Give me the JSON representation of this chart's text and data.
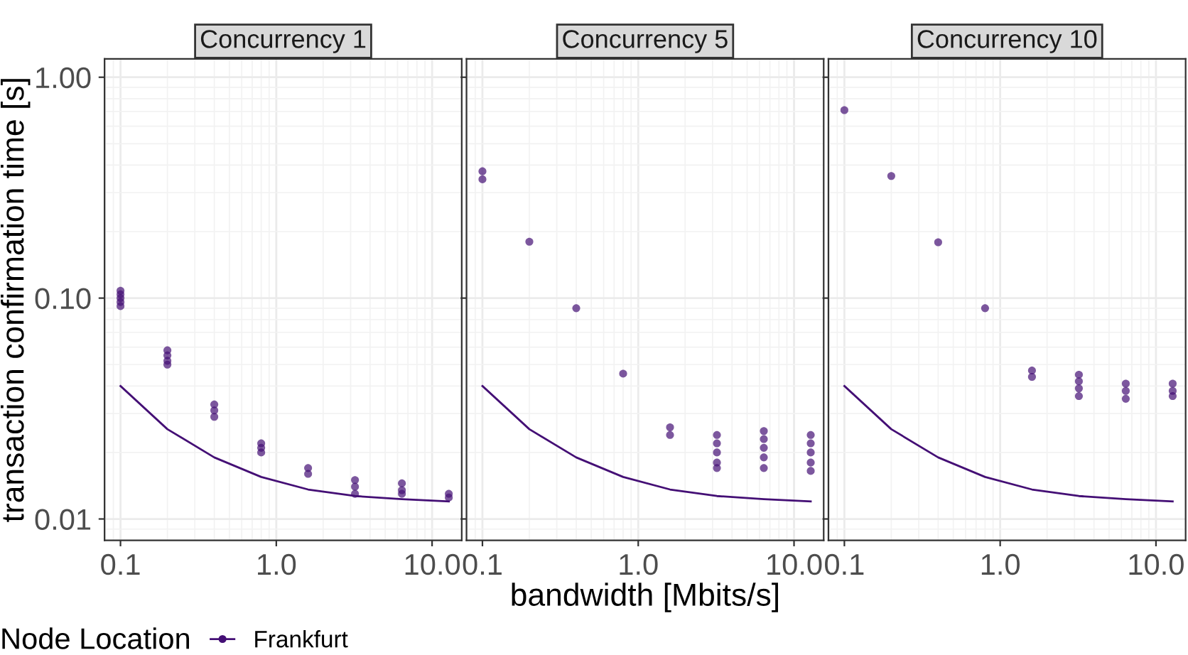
{
  "chart_data": [
    {
      "type": "scatter",
      "title": "Concurrency 1",
      "ylabel": "transaction confirmation time [s]",
      "legend_title": "Node Location",
      "legend": "bottom",
      "log": "xy",
      "grid": true,
      "marker": "circle",
      "xlim": [
        0.079,
        15.5
      ],
      "ylim": [
        0.008,
        1.21
      ],
      "xticks": [
        {
          "value": 0.1,
          "label": "0.1"
        },
        {
          "value": 1,
          "label": "1.0"
        },
        {
          "value": 10,
          "label": "10.0"
        }
      ],
      "yticks": [
        {
          "value": 0.01,
          "label": "0.01"
        },
        {
          "value": 0.1,
          "label": "0.10"
        },
        {
          "value": 1,
          "label": "1.00"
        }
      ],
      "series": [
        {
          "name": "Frankfurt",
          "color": "#440f75",
          "x": [
            0.1,
            0.1,
            0.1,
            0.1,
            0.1,
            0.2,
            0.2,
            0.2,
            0.2,
            0.4,
            0.4,
            0.4,
            0.8,
            0.8,
            0.8,
            1.6,
            1.6,
            3.2,
            3.2,
            3.2,
            6.4,
            6.4,
            6.4,
            12.8,
            12.8
          ],
          "values": [
            0.108,
            0.104,
            0.1,
            0.096,
            0.092,
            0.058,
            0.055,
            0.052,
            0.05,
            0.033,
            0.031,
            0.029,
            0.022,
            0.021,
            0.02,
            0.017,
            0.016,
            0.015,
            0.014,
            0.013,
            0.0145,
            0.0135,
            0.013,
            0.013,
            0.0125
          ]
        },
        {
          "type": "line",
          "marker": "none",
          "color": "#440f75",
          "x": [
            0.1,
            0.2,
            0.4,
            0.8,
            1.6,
            3.2,
            6.4,
            12.8
          ],
          "values": [
            0.04,
            0.0255,
            0.019,
            0.0155,
            0.0136,
            0.0127,
            0.0123,
            0.012
          ]
        }
      ]
    },
    {
      "type": "scatter",
      "title": "Concurrency 5",
      "xlabel": "bandwidth [Mbits/s]",
      "log": "xy",
      "grid": true,
      "marker": "circle",
      "tick_labels": "x",
      "xlim": [
        0.079,
        15.5
      ],
      "ylim": [
        0.008,
        1.21
      ],
      "xticks": [
        {
          "value": 0.1,
          "label": "0.1"
        },
        {
          "value": 1,
          "label": "1.0"
        },
        {
          "value": 10,
          "label": "10.0"
        }
      ],
      "yticks": [
        {
          "value": 0.01,
          "label": null
        },
        {
          "value": 0.1,
          "label": null
        },
        {
          "value": 1,
          "label": null
        }
      ],
      "series": [
        {
          "color": "#440f75",
          "x": [
            0.1,
            0.1,
            0.2,
            0.4,
            0.8,
            1.6,
            1.6,
            3.2,
            3.2,
            3.2,
            3.2,
            3.2,
            6.4,
            6.4,
            6.4,
            6.4,
            6.4,
            12.8,
            12.8,
            12.8,
            12.8,
            12.8
          ],
          "values": [
            0.375,
            0.345,
            0.18,
            0.09,
            0.0455,
            0.026,
            0.024,
            0.024,
            0.022,
            0.02,
            0.018,
            0.017,
            0.025,
            0.023,
            0.021,
            0.019,
            0.017,
            0.024,
            0.022,
            0.02,
            0.018,
            0.0165
          ]
        },
        {
          "type": "line",
          "marker": "none",
          "color": "#440f75",
          "x": [
            0.1,
            0.2,
            0.4,
            0.8,
            1.6,
            3.2,
            6.4,
            12.8
          ],
          "values": [
            0.04,
            0.0255,
            0.019,
            0.0155,
            0.0136,
            0.0127,
            0.0123,
            0.012
          ]
        }
      ]
    },
    {
      "type": "scatter",
      "title": "Concurrency 10",
      "log": "xy",
      "grid": true,
      "marker": "circle",
      "tick_labels": "x",
      "xlim": [
        0.079,
        15.5
      ],
      "ylim": [
        0.008,
        1.21
      ],
      "xticks": [
        {
          "value": 0.1,
          "label": "0.1"
        },
        {
          "value": 1,
          "label": "1.0"
        },
        {
          "value": 10,
          "label": "10.0"
        }
      ],
      "yticks": [
        {
          "value": 0.01,
          "label": null
        },
        {
          "value": 0.1,
          "label": null
        },
        {
          "value": 1,
          "label": null
        }
      ],
      "series": [
        {
          "color": "#440f75",
          "x": [
            0.1,
            0.2,
            0.4,
            0.8,
            1.6,
            1.6,
            3.2,
            3.2,
            3.2,
            3.2,
            6.4,
            6.4,
            6.4,
            12.8,
            12.8,
            12.8
          ],
          "values": [
            0.71,
            0.357,
            0.179,
            0.09,
            0.047,
            0.044,
            0.045,
            0.042,
            0.039,
            0.036,
            0.041,
            0.038,
            0.035,
            0.041,
            0.038,
            0.036
          ]
        },
        {
          "type": "line",
          "marker": "none",
          "color": "#440f75",
          "x": [
            0.1,
            0.2,
            0.4,
            0.8,
            1.6,
            3.2,
            6.4,
            12.8
          ],
          "values": [
            0.04,
            0.0255,
            0.019,
            0.0155,
            0.0136,
            0.0127,
            0.0123,
            0.012
          ]
        }
      ]
    }
  ]
}
